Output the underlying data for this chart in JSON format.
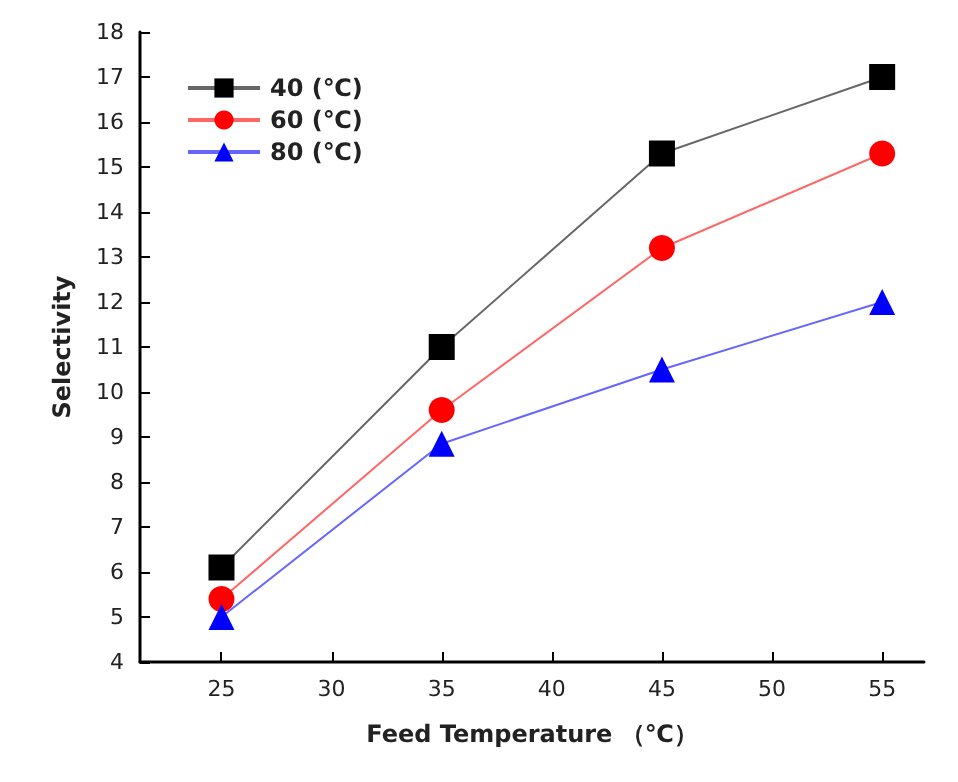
{
  "chart_data": {
    "type": "line",
    "xlabel": "Feed Temperature （℃）",
    "ylabel": "Selectivity",
    "x": [
      25,
      35,
      45,
      55
    ],
    "xlim": [
      21.3,
      56.9
    ],
    "xticks": [
      25,
      30,
      35,
      40,
      45,
      50,
      55
    ],
    "ylim": [
      4,
      18
    ],
    "yticks": [
      4,
      5,
      6,
      7,
      8,
      9,
      10,
      11,
      12,
      13,
      14,
      15,
      16,
      17,
      18
    ],
    "legend": "top left",
    "grid": false,
    "line_style": "solid",
    "series": [
      {
        "name": "40 (℃)",
        "color": "#000000",
        "marker": "square",
        "values": [
          6.1,
          11,
          15.3,
          17
        ]
      },
      {
        "name": "60 (℃)",
        "color": "#ff0000",
        "marker": "circle",
        "values": [
          5.4,
          9.6,
          13.2,
          15.3
        ]
      },
      {
        "name": "80 (℃)",
        "color": "#0000ff",
        "marker": "triangle",
        "values": [
          5.0,
          8.85,
          10.5,
          12.0
        ]
      }
    ]
  }
}
